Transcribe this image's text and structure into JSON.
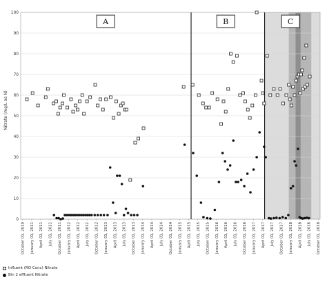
{
  "chart_data": {
    "type": "scatter",
    "title": "",
    "xlabel": "",
    "ylabel": "Nitrate (mg/L as N)",
    "ylim": [
      0,
      100
    ],
    "yticks": [
      0,
      10,
      20,
      30,
      40,
      50,
      60,
      70,
      80,
      90,
      100
    ],
    "xlim": [
      "2010-09-15",
      "2018-10-20"
    ],
    "xticks": [
      "October 01, 2010",
      "January 01, 2011",
      "April 01, 2011",
      "July 01, 2011",
      "October 01, 2011",
      "January 01, 2012",
      "April 01, 2012",
      "July 01, 2012",
      "October 01, 2012",
      "January 01, 2013",
      "April 01, 2013",
      "July 01, 2013",
      "October 01, 2013",
      "January 01, 2014",
      "April 01, 2014",
      "July 01, 2014",
      "October 01, 2014",
      "January 01, 2015",
      "April 01, 2015",
      "July 01, 2015",
      "October 01, 2015",
      "January 01, 2016",
      "April 01, 2016",
      "July 01, 2016",
      "October 01, 2016",
      "January 01, 2017",
      "April 01, 2017",
      "July 01, 2017",
      "October 01, 2017",
      "January 01, 2018",
      "April 01, 2018",
      "July 01, 2018",
      "October 01, 2018"
    ],
    "grid": "horizontal",
    "legend_position": "bottom-left",
    "period_lines": [
      "2015-04-25",
      "2017-04-20"
    ],
    "periods": [
      {
        "label": "A",
        "center": "2013-01-01"
      },
      {
        "label": "B",
        "center": "2016-04-01"
      },
      {
        "label": "C",
        "center": "2018-01-01"
      }
    ],
    "shaded_bands": [
      {
        "from": "2017-04-20",
        "to": "2018-10-20",
        "shade": "#dcdcdc"
      },
      {
        "from": "2017-12-15",
        "to": "2018-07-25",
        "shade": "#b6b6b6"
      },
      {
        "from": "2018-02-20",
        "to": "2018-04-10",
        "shade": "#8e8e8e"
      }
    ],
    "series": [
      {
        "name": "Influent (RO Conc) Nitrate",
        "marker": "square",
        "points": [
          [
            "2010-11-15",
            58
          ],
          [
            "2011-01-10",
            61
          ],
          [
            "2011-03-05",
            55
          ],
          [
            "2011-05-20",
            59
          ],
          [
            "2011-06-10",
            63
          ],
          [
            "2011-08-05",
            56
          ],
          [
            "2011-09-01",
            57
          ],
          [
            "2011-09-20",
            51
          ],
          [
            "2011-10-10",
            54
          ],
          [
            "2011-11-01",
            56
          ],
          [
            "2011-11-15",
            60
          ],
          [
            "2011-12-20",
            54
          ],
          [
            "2012-01-25",
            58
          ],
          [
            "2012-02-15",
            52
          ],
          [
            "2012-03-10",
            55
          ],
          [
            "2012-03-30",
            53
          ],
          [
            "2012-04-20",
            57
          ],
          [
            "2012-05-15",
            60
          ],
          [
            "2012-06-01",
            51
          ],
          [
            "2012-07-01",
            57
          ],
          [
            "2012-08-01",
            59
          ],
          [
            "2012-09-20",
            65
          ],
          [
            "2012-10-15",
            55
          ],
          [
            "2012-11-10",
            58
          ],
          [
            "2012-12-05",
            53
          ],
          [
            "2013-01-05",
            58
          ],
          [
            "2013-02-20",
            59
          ],
          [
            "2013-03-20",
            49
          ],
          [
            "2013-04-15",
            57
          ],
          [
            "2013-05-10",
            51
          ],
          [
            "2013-06-01",
            55
          ],
          [
            "2013-06-20",
            56
          ],
          [
            "2013-07-10",
            53
          ],
          [
            "2013-07-25",
            53
          ],
          [
            "2013-09-01",
            19
          ],
          [
            "2013-10-20",
            37
          ],
          [
            "2013-11-20",
            39
          ],
          [
            "2014-01-10",
            44
          ],
          [
            "2015-02-10",
            64
          ],
          [
            "2015-05-10",
            65
          ],
          [
            "2015-07-10",
            60
          ],
          [
            "2015-08-20",
            56
          ],
          [
            "2015-09-20",
            54
          ],
          [
            "2015-10-20",
            54
          ],
          [
            "2015-11-20",
            61
          ],
          [
            "2016-01-10",
            58
          ],
          [
            "2016-02-15",
            46
          ],
          [
            "2016-03-10",
            57
          ],
          [
            "2016-04-01",
            52
          ],
          [
            "2016-04-25",
            63
          ],
          [
            "2016-05-20",
            80
          ],
          [
            "2016-06-15",
            76
          ],
          [
            "2016-07-20",
            79
          ],
          [
            "2016-08-20",
            60
          ],
          [
            "2016-09-20",
            61
          ],
          [
            "2016-10-10",
            57
          ],
          [
            "2016-11-05",
            53
          ],
          [
            "2016-11-25",
            49
          ],
          [
            "2016-12-20",
            55
          ],
          [
            "2017-01-20",
            60
          ],
          [
            "2017-02-01",
            100
          ],
          [
            "2017-03-20",
            67
          ],
          [
            "2017-04-01",
            61
          ],
          [
            "2017-04-15",
            56
          ],
          [
            "2017-05-15",
            79
          ],
          [
            "2017-06-15",
            60
          ],
          [
            "2017-07-20",
            63
          ],
          [
            "2017-08-25",
            60
          ],
          [
            "2017-09-20",
            63
          ],
          [
            "2017-10-20",
            56
          ],
          [
            "2017-11-20",
            60
          ],
          [
            "2017-12-15",
            65
          ],
          [
            "2017-12-25",
            58
          ],
          [
            "2018-01-10",
            55
          ],
          [
            "2018-01-25",
            64
          ],
          [
            "2018-02-10",
            60
          ],
          [
            "2018-02-25",
            67
          ],
          [
            "2018-03-10",
            69
          ],
          [
            "2018-03-25",
            70
          ],
          [
            "2018-04-05",
            61
          ],
          [
            "2018-04-15",
            70
          ],
          [
            "2018-04-25",
            72
          ],
          [
            "2018-05-05",
            63
          ],
          [
            "2018-05-15",
            78
          ],
          [
            "2018-05-25",
            64
          ],
          [
            "2018-06-05",
            84
          ],
          [
            "2018-06-15",
            65
          ],
          [
            "2018-07-10",
            69
          ]
        ]
      },
      {
        "name": "Bin 2 effluent Nitrate",
        "marker": "circle",
        "points": [
          [
            "2011-08-10",
            2
          ],
          [
            "2011-09-05",
            0.5
          ],
          [
            "2011-09-25",
            0.5
          ],
          [
            "2011-10-15",
            0
          ],
          [
            "2011-11-05",
            0.3
          ],
          [
            "2011-11-25",
            2
          ],
          [
            "2011-12-15",
            2
          ],
          [
            "2012-01-05",
            2
          ],
          [
            "2012-01-25",
            2
          ],
          [
            "2012-02-15",
            2
          ],
          [
            "2012-03-05",
            2
          ],
          [
            "2012-03-25",
            2
          ],
          [
            "2012-04-15",
            2
          ],
          [
            "2012-05-05",
            2
          ],
          [
            "2012-05-25",
            2
          ],
          [
            "2012-06-15",
            2
          ],
          [
            "2012-07-05",
            2
          ],
          [
            "2012-07-25",
            2
          ],
          [
            "2012-08-15",
            2
          ],
          [
            "2012-09-15",
            2
          ],
          [
            "2012-10-15",
            2
          ],
          [
            "2012-11-15",
            2
          ],
          [
            "2012-12-15",
            2
          ],
          [
            "2013-01-20",
            2
          ],
          [
            "2013-02-15",
            25
          ],
          [
            "2013-03-15",
            8
          ],
          [
            "2013-04-10",
            3
          ],
          [
            "2013-04-25",
            21
          ],
          [
            "2013-05-20",
            21
          ],
          [
            "2013-06-10",
            17
          ],
          [
            "2013-07-01",
            2
          ],
          [
            "2013-07-20",
            5
          ],
          [
            "2013-08-10",
            3
          ],
          [
            "2013-09-10",
            2
          ],
          [
            "2013-10-10",
            2
          ],
          [
            "2013-11-10",
            2
          ],
          [
            "2014-01-05",
            16
          ],
          [
            "2015-02-20",
            36
          ],
          [
            "2015-05-15",
            32
          ],
          [
            "2015-06-20",
            21
          ],
          [
            "2015-08-01",
            8
          ],
          [
            "2015-08-25",
            1
          ],
          [
            "2015-10-01",
            0.5
          ],
          [
            "2015-11-01",
            0.3
          ],
          [
            "2015-12-15",
            4.5
          ],
          [
            "2016-01-25",
            18
          ],
          [
            "2016-03-01",
            32
          ],
          [
            "2016-03-25",
            28
          ],
          [
            "2016-04-20",
            24
          ],
          [
            "2016-05-15",
            26
          ],
          [
            "2016-06-15",
            38
          ],
          [
            "2016-07-10",
            18
          ],
          [
            "2016-08-01",
            18
          ],
          [
            "2016-09-01",
            19
          ],
          [
            "2016-10-01",
            16
          ],
          [
            "2016-11-01",
            22
          ],
          [
            "2016-12-01",
            13
          ],
          [
            "2017-01-01",
            24
          ],
          [
            "2017-02-01",
            30
          ],
          [
            "2017-03-01",
            42
          ],
          [
            "2017-04-15",
            35
          ],
          [
            "2017-05-01",
            30
          ],
          [
            "2017-06-01",
            0.5
          ],
          [
            "2017-06-20",
            0.3
          ],
          [
            "2017-07-20",
            0.5
          ],
          [
            "2017-08-15",
            0.7
          ],
          [
            "2017-09-15",
            0.5
          ],
          [
            "2017-10-15",
            1
          ],
          [
            "2017-11-15",
            0.5
          ],
          [
            "2017-12-10",
            2
          ],
          [
            "2018-01-05",
            15
          ],
          [
            "2018-01-25",
            16
          ],
          [
            "2018-02-10",
            28
          ],
          [
            "2018-02-25",
            26
          ],
          [
            "2018-03-15",
            34
          ],
          [
            "2018-04-01",
            1
          ],
          [
            "2018-04-15",
            0.5
          ],
          [
            "2018-05-01",
            0.3
          ],
          [
            "2018-05-20",
            0.5
          ],
          [
            "2018-06-10",
            0.7
          ],
          [
            "2018-07-01",
            0.5
          ]
        ]
      }
    ]
  },
  "legend": {
    "items": [
      {
        "label": "Influent (RO Conc) Nitrate"
      },
      {
        "label": "Bin 2 effluent Nitrate"
      }
    ]
  }
}
